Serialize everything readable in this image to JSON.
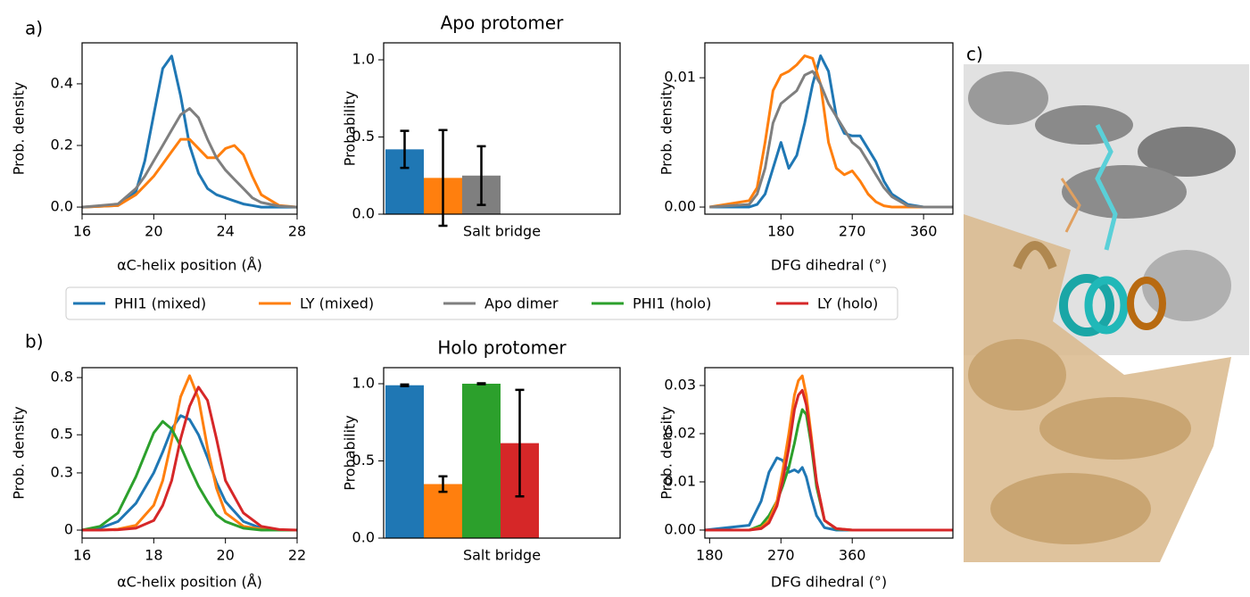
{
  "panel_labels": [
    "a)",
    "b)",
    "c)"
  ],
  "legend": [
    {
      "name": "PHI1 (mixed)",
      "color": "#1f77b4"
    },
    {
      "name": "LY (mixed)",
      "color": "#ff7f0e"
    },
    {
      "name": "Apo dimer",
      "color": "#7f7f7f"
    },
    {
      "name": "PHI1 (holo)",
      "color": "#2ca02c"
    },
    {
      "name": "LY (holo)",
      "color": "#d62728"
    }
  ],
  "chart_data": [
    {
      "type": "line",
      "xlabel": "αC-helix position (Å)",
      "ylabel": "Prob. density",
      "x": [
        16,
        18,
        19,
        19.5,
        20,
        20.5,
        21,
        21.5,
        22,
        22.5,
        23,
        23.5,
        24,
        24.5,
        25,
        25.5,
        26,
        27,
        28
      ],
      "series": [
        {
          "color": "#1f77b4",
          "values": [
            0,
            0.005,
            0.05,
            0.15,
            0.3,
            0.45,
            0.49,
            0.36,
            0.2,
            0.11,
            0.06,
            0.04,
            0.03,
            0.02,
            0.01,
            0.005,
            0,
            0,
            0
          ]
        },
        {
          "color": "#ff7f0e",
          "values": [
            0,
            0.005,
            0.04,
            0.07,
            0.1,
            0.14,
            0.18,
            0.22,
            0.22,
            0.19,
            0.16,
            0.16,
            0.19,
            0.2,
            0.17,
            0.1,
            0.04,
            0.005,
            0
          ]
        },
        {
          "color": "#7f7f7f",
          "values": [
            0,
            0.01,
            0.06,
            0.1,
            0.15,
            0.2,
            0.25,
            0.3,
            0.32,
            0.29,
            0.22,
            0.16,
            0.12,
            0.09,
            0.06,
            0.03,
            0.015,
            0.003,
            0
          ]
        }
      ],
      "xlim": [
        16,
        28
      ],
      "xticks": [
        16,
        20,
        24,
        28
      ],
      "ylim": [
        -0.023,
        0.533
      ],
      "yticks": [
        {
          "value": 0,
          "label": "0.0"
        },
        0.2,
        0.4
      ]
    },
    {
      "type": "bar",
      "title": "Apo protomer",
      "ylabel": "Probability",
      "categories": [
        "Salt bridge"
      ],
      "series": [
        {
          "color": "#1f77b4",
          "values": [
            0.42
          ],
          "errors": [
            0.12
          ]
        },
        {
          "color": "#ff7f0e",
          "values": [
            0.235
          ],
          "errors": [
            0.31
          ]
        },
        {
          "color": "#7f7f7f",
          "values": [
            0.25
          ],
          "errors": [
            0.19
          ]
        }
      ],
      "ylim": [
        0,
        1.11
      ],
      "yticks": [
        {
          "value": 0,
          "label": "0.0"
        },
        0.5,
        {
          "value": 1,
          "label": "1.0"
        }
      ]
    },
    {
      "type": "line",
      "xlabel": "DFG dihedral (°)",
      "ylabel": "Prob. density",
      "x": [
        90,
        140,
        150,
        160,
        170,
        180,
        190,
        200,
        210,
        220,
        230,
        240,
        250,
        260,
        270,
        280,
        290,
        300,
        310,
        320,
        340,
        360,
        397
      ],
      "series": [
        {
          "color": "#1f77b4",
          "values": [
            0,
            0,
            0.0002,
            0.001,
            0.003,
            0.005,
            0.003,
            0.004,
            0.0065,
            0.0095,
            0.0117,
            0.0105,
            0.007,
            0.0057,
            0.0055,
            0.0055,
            0.0045,
            0.0035,
            0.002,
            0.001,
            0.0002,
            0,
            0
          ]
        },
        {
          "color": "#ff7f0e",
          "values": [
            0,
            0.0005,
            0.0015,
            0.005,
            0.009,
            0.0102,
            0.0105,
            0.011,
            0.0117,
            0.0115,
            0.0095,
            0.005,
            0.003,
            0.0025,
            0.0028,
            0.002,
            0.001,
            0.0004,
            0.0001,
            0,
            0,
            0,
            0
          ]
        },
        {
          "color": "#7f7f7f",
          "values": [
            0,
            0.0002,
            0.001,
            0.003,
            0.0065,
            0.008,
            0.0085,
            0.009,
            0.0102,
            0.0105,
            0.0095,
            0.008,
            0.007,
            0.006,
            0.005,
            0.0045,
            0.0035,
            0.0025,
            0.0015,
            0.0008,
            0.0001,
            0,
            0
          ]
        }
      ],
      "xlim": [
        84,
        397
      ],
      "xticks": [
        180,
        270,
        360
      ],
      "ylim": [
        -0.00055,
        0.0127
      ],
      "yticks": [
        {
          "value": 0,
          "label": "0.00"
        },
        0.01
      ]
    },
    {
      "type": "line",
      "xlabel": "αC-helix position (Å)",
      "ylabel": "Prob. density",
      "x": [
        16,
        16.5,
        17,
        17.5,
        18,
        18.25,
        18.5,
        18.75,
        19,
        19.25,
        19.5,
        19.75,
        20,
        20.5,
        21,
        21.5,
        22
      ],
      "series": [
        {
          "color": "#1f77b4",
          "values": [
            0,
            0.01,
            0.045,
            0.14,
            0.3,
            0.41,
            0.53,
            0.6,
            0.58,
            0.5,
            0.38,
            0.25,
            0.15,
            0.045,
            0.01,
            0,
            0
          ]
        },
        {
          "color": "#ff7f0e",
          "values": [
            0,
            0,
            0.005,
            0.025,
            0.13,
            0.26,
            0.47,
            0.7,
            0.81,
            0.69,
            0.43,
            0.22,
            0.09,
            0.02,
            0.005,
            0,
            0
          ]
        },
        {
          "color": "#2ca02c",
          "values": [
            0,
            0.02,
            0.09,
            0.28,
            0.51,
            0.57,
            0.53,
            0.44,
            0.33,
            0.23,
            0.15,
            0.08,
            0.045,
            0.01,
            0,
            0,
            0
          ]
        },
        {
          "color": "#d62728",
          "values": [
            0,
            0,
            0.002,
            0.01,
            0.05,
            0.13,
            0.26,
            0.48,
            0.65,
            0.75,
            0.68,
            0.48,
            0.26,
            0.09,
            0.02,
            0.003,
            0
          ]
        }
      ],
      "xlim": [
        16,
        22
      ],
      "xticks": [
        16,
        18,
        20,
        22
      ],
      "ylim": [
        -0.042,
        0.852
      ],
      "yticks": [
        0,
        0.3,
        0.5,
        0.8
      ]
    },
    {
      "type": "bar",
      "title": "Holo protomer",
      "ylabel": "Probability",
      "categories": [
        "Salt bridge"
      ],
      "series": [
        {
          "color": "#1f77b4",
          "values": [
            0.99
          ],
          "errors": [
            0.005
          ]
        },
        {
          "color": "#ff7f0e",
          "values": [
            0.35
          ],
          "errors": [
            0.05
          ]
        },
        {
          "color": "#2ca02c",
          "values": [
            1.0
          ],
          "errors": [
            0.003
          ]
        },
        {
          "color": "#d62728",
          "values": [
            0.615
          ],
          "errors": [
            0.345
          ]
        }
      ],
      "ylim": [
        0,
        1.104
      ],
      "yticks": [
        {
          "value": 0,
          "label": "0.0"
        },
        0.5,
        {
          "value": 1,
          "label": "1.0"
        }
      ]
    },
    {
      "type": "line",
      "xlabel": "DFG dihedral (°)",
      "ylabel": "Prob. density",
      "x": [
        174,
        230,
        245,
        255,
        265,
        272,
        280,
        287,
        292,
        297,
        302,
        308,
        315,
        325,
        340,
        360,
        487
      ],
      "series": [
        {
          "color": "#1f77b4",
          "values": [
            0,
            0.001,
            0.006,
            0.012,
            0.015,
            0.0145,
            0.012,
            0.0125,
            0.012,
            0.013,
            0.011,
            0.007,
            0.003,
            0.0005,
            0,
            0,
            0
          ]
        },
        {
          "color": "#2ca02c",
          "values": [
            0,
            0,
            0.001,
            0.003,
            0.006,
            0.009,
            0.013,
            0.018,
            0.022,
            0.025,
            0.024,
            0.018,
            0.009,
            0.002,
            0.0002,
            0,
            0
          ]
        },
        {
          "color": "#ff7f0e",
          "values": [
            0,
            0,
            0.0005,
            0.002,
            0.006,
            0.012,
            0.02,
            0.028,
            0.031,
            0.032,
            0.028,
            0.02,
            0.01,
            0.002,
            0.0003,
            0,
            0
          ]
        },
        {
          "color": "#d62728",
          "values": [
            0,
            0,
            0.0003,
            0.0015,
            0.005,
            0.01,
            0.017,
            0.025,
            0.028,
            0.029,
            0.026,
            0.019,
            0.01,
            0.002,
            0.0003,
            0,
            0
          ]
        }
      ],
      "xlim": [
        174,
        487
      ],
      "xticks": [
        180,
        270,
        360
      ],
      "ylim": [
        -0.00167,
        0.0337
      ],
      "yticks": [
        {
          "value": 0,
          "label": "0.00"
        },
        {
          "value": 0.01,
          "label": "0.01"
        },
        {
          "value": 0.02,
          "label": "0.02"
        },
        {
          "value": 0.03,
          "label": "0.03"
        }
      ]
    }
  ]
}
